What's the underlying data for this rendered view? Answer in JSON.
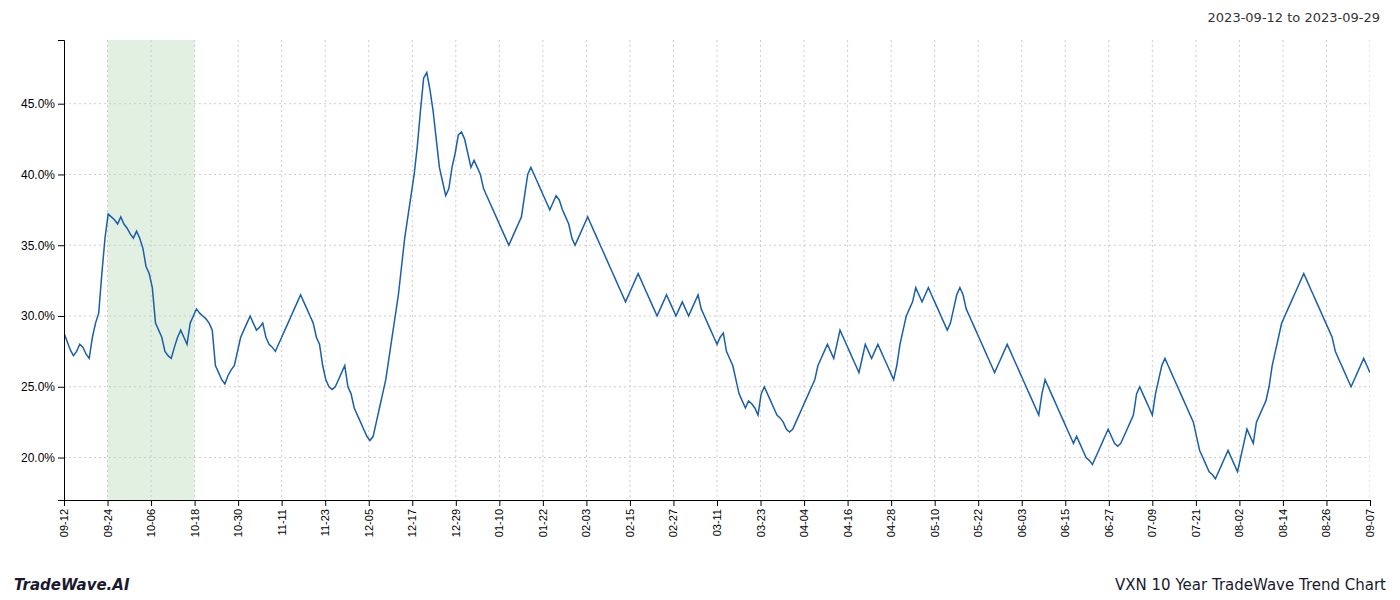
{
  "chart_data": {
    "type": "line",
    "title": "VXN 10 Year TradeWave Trend Chart",
    "subtitle": "2023-09-12 to 2023-09-29",
    "annotations": [
      "TradeWave.AI"
    ],
    "color": "#1a5fa8",
    "grid": true,
    "xlim": [
      0,
      414
    ],
    "xticks": [
      {
        "value": 0,
        "label": "09-12"
      },
      {
        "value": 13.8,
        "label": "09-24"
      },
      {
        "value": 27.6,
        "label": "10-06"
      },
      {
        "value": 41.4,
        "label": "10-18"
      },
      {
        "value": 55.2,
        "label": "10-30"
      },
      {
        "value": 69,
        "label": "11-11"
      },
      {
        "value": 82.8,
        "label": "11-23"
      },
      {
        "value": 96.6,
        "label": "12-05"
      },
      {
        "value": 110.4,
        "label": "12-17"
      },
      {
        "value": 124.2,
        "label": "12-29"
      },
      {
        "value": 138,
        "label": "01-10"
      },
      {
        "value": 151.8,
        "label": "01-22"
      },
      {
        "value": 165.6,
        "label": "02-03"
      },
      {
        "value": 179.4,
        "label": "02-15"
      },
      {
        "value": 193.2,
        "label": "02-27"
      },
      {
        "value": 207,
        "label": "03-11"
      },
      {
        "value": 220.8,
        "label": "03-23"
      },
      {
        "value": 234.6,
        "label": "04-04"
      },
      {
        "value": 248.4,
        "label": "04-16"
      },
      {
        "value": 262.2,
        "label": "04-28"
      },
      {
        "value": 276,
        "label": "05-10"
      },
      {
        "value": 289.8,
        "label": "05-22"
      },
      {
        "value": 303.6,
        "label": "06-03"
      },
      {
        "value": 317.4,
        "label": "06-15"
      },
      {
        "value": 331.2,
        "label": "06-27"
      },
      {
        "value": 345,
        "label": "07-09"
      },
      {
        "value": 358.8,
        "label": "07-21"
      },
      {
        "value": 372.6,
        "label": "08-02"
      },
      {
        "value": 386.4,
        "label": "08-14"
      },
      {
        "value": 400.2,
        "label": "08-26"
      },
      {
        "value": 414,
        "label": "09-07"
      }
    ],
    "ylim": [
      17.0,
      49.5
    ],
    "yticks": [
      {
        "value": 20.0,
        "label": "20.0%"
      },
      {
        "value": 25.0,
        "label": "25.0%"
      },
      {
        "value": 30.0,
        "label": "30.0%"
      },
      {
        "value": 35.0,
        "label": "35.0%"
      },
      {
        "value": 40.0,
        "label": "40.0%"
      },
      {
        "value": 45.0,
        "label": "45.0%"
      }
    ],
    "spans": [
      {
        "x": [
          13.8,
          41.4
        ],
        "color": "#d6ead6"
      }
    ],
    "values": [
      28.8,
      28.2,
      27.6,
      27.2,
      27.5,
      28.0,
      27.8,
      27.3,
      27.0,
      28.5,
      29.5,
      30.2,
      33.0,
      35.5,
      37.2,
      37.0,
      36.8,
      36.5,
      37.0,
      36.5,
      36.2,
      35.8,
      35.5,
      36.0,
      35.5,
      34.8,
      33.5,
      33.0,
      32.0,
      29.5,
      29.0,
      28.5,
      27.5,
      27.2,
      27.0,
      27.8,
      28.5,
      29.0,
      28.5,
      28.0,
      29.5,
      30.0,
      30.5,
      30.2,
      30.0,
      29.8,
      29.5,
      29.0,
      26.5,
      26.0,
      25.5,
      25.2,
      25.8,
      26.2,
      26.5,
      27.5,
      28.5,
      29.0,
      29.5,
      30.0,
      29.5,
      29.0,
      29.2,
      29.5,
      28.5,
      28.0,
      27.8,
      27.5,
      28.0,
      28.5,
      29.0,
      29.5,
      30.0,
      30.5,
      31.0,
      31.5,
      31.0,
      30.5,
      30.0,
      29.5,
      28.5,
      28.0,
      26.5,
      25.5,
      25.0,
      24.8,
      25.0,
      25.5,
      26.0,
      26.5,
      25.0,
      24.5,
      23.5,
      23.0,
      22.5,
      22.0,
      21.5,
      21.2,
      21.5,
      22.5,
      23.5,
      24.5,
      25.5,
      27.0,
      28.5,
      30.0,
      31.5,
      33.5,
      35.5,
      37.0,
      38.5,
      40.0,
      42.0,
      44.5,
      46.8,
      47.2,
      46.0,
      44.5,
      42.5,
      40.5,
      39.5,
      38.5,
      39.0,
      40.5,
      41.5,
      42.8,
      43.0,
      42.5,
      41.5,
      40.5,
      41.0,
      40.5,
      40.0,
      39.0,
      38.5,
      38.0,
      37.5,
      37.0,
      36.5,
      36.0,
      35.5,
      35.0,
      35.5,
      36.0,
      36.5,
      37.0,
      38.5,
      40.0,
      40.5,
      40.0,
      39.5,
      39.0,
      38.5,
      38.0,
      37.5,
      38.0,
      38.5,
      38.2,
      37.5,
      37.0,
      36.5,
      35.5,
      35.0,
      35.5,
      36.0,
      36.5,
      37.0,
      36.5,
      36.0,
      35.5,
      35.0,
      34.5,
      34.0,
      33.5,
      33.0,
      32.5,
      32.0,
      31.5,
      31.0,
      31.5,
      32.0,
      32.5,
      33.0,
      32.5,
      32.0,
      31.5,
      31.0,
      30.5,
      30.0,
      30.5,
      31.0,
      31.5,
      31.0,
      30.5,
      30.0,
      30.5,
      31.0,
      30.5,
      30.0,
      30.5,
      31.0,
      31.5,
      30.5,
      30.0,
      29.5,
      29.0,
      28.5,
      28.0,
      28.5,
      28.8,
      27.5,
      27.0,
      26.5,
      25.5,
      24.5,
      24.0,
      23.5,
      24.0,
      23.8,
      23.5,
      23.0,
      24.5,
      25.0,
      24.5,
      24.0,
      23.5,
      23.0,
      22.8,
      22.5,
      22.0,
      21.8,
      22.0,
      22.5,
      23.0,
      23.5,
      24.0,
      24.5,
      25.0,
      25.5,
      26.5,
      27.0,
      27.5,
      28.0,
      27.5,
      27.0,
      28.0,
      29.0,
      28.5,
      28.0,
      27.5,
      27.0,
      26.5,
      26.0,
      27.0,
      28.0,
      27.5,
      27.0,
      27.5,
      28.0,
      27.5,
      27.0,
      26.5,
      26.0,
      25.5,
      26.5,
      28.0,
      29.0,
      30.0,
      30.5,
      31.0,
      32.0,
      31.5,
      31.0,
      31.5,
      32.0,
      31.5,
      31.0,
      30.5,
      30.0,
      29.5,
      29.0,
      29.5,
      30.5,
      31.5,
      32.0,
      31.5,
      30.5,
      30.0,
      29.5,
      29.0,
      28.5,
      28.0,
      27.5,
      27.0,
      26.5,
      26.0,
      26.5,
      27.0,
      27.5,
      28.0,
      27.5,
      27.0,
      26.5,
      26.0,
      25.5,
      25.0,
      24.5,
      24.0,
      23.5,
      23.0,
      24.5,
      25.5,
      25.0,
      24.5,
      24.0,
      23.5,
      23.0,
      22.5,
      22.0,
      21.5,
      21.0,
      21.5,
      21.0,
      20.5,
      20.0,
      19.8,
      19.5,
      20.0,
      20.5,
      21.0,
      21.5,
      22.0,
      21.5,
      21.0,
      20.8,
      21.0,
      21.5,
      22.0,
      22.5,
      23.0,
      24.5,
      25.0,
      24.5,
      24.0,
      23.5,
      23.0,
      24.5,
      25.5,
      26.5,
      27.0,
      26.5,
      26.0,
      25.5,
      25.0,
      24.5,
      24.0,
      23.5,
      23.0,
      22.5,
      21.5,
      20.5,
      20.0,
      19.5,
      19.0,
      18.8,
      18.5,
      19.0,
      19.5,
      20.0,
      20.5,
      20.0,
      19.5,
      19.0,
      20.0,
      21.0,
      22.0,
      21.5,
      21.0,
      22.5,
      23.0,
      23.5,
      24.0,
      25.0,
      26.5,
      27.5,
      28.5,
      29.5,
      30.0,
      30.5,
      31.0,
      31.5,
      32.0,
      32.5,
      33.0,
      32.5,
      32.0,
      31.5,
      31.0,
      30.5,
      30.0,
      29.5,
      29.0,
      28.5,
      27.5,
      27.0,
      26.5,
      26.0,
      25.5,
      25.0,
      25.5,
      26.0,
      26.5,
      27.0,
      26.5,
      26.0
    ]
  }
}
